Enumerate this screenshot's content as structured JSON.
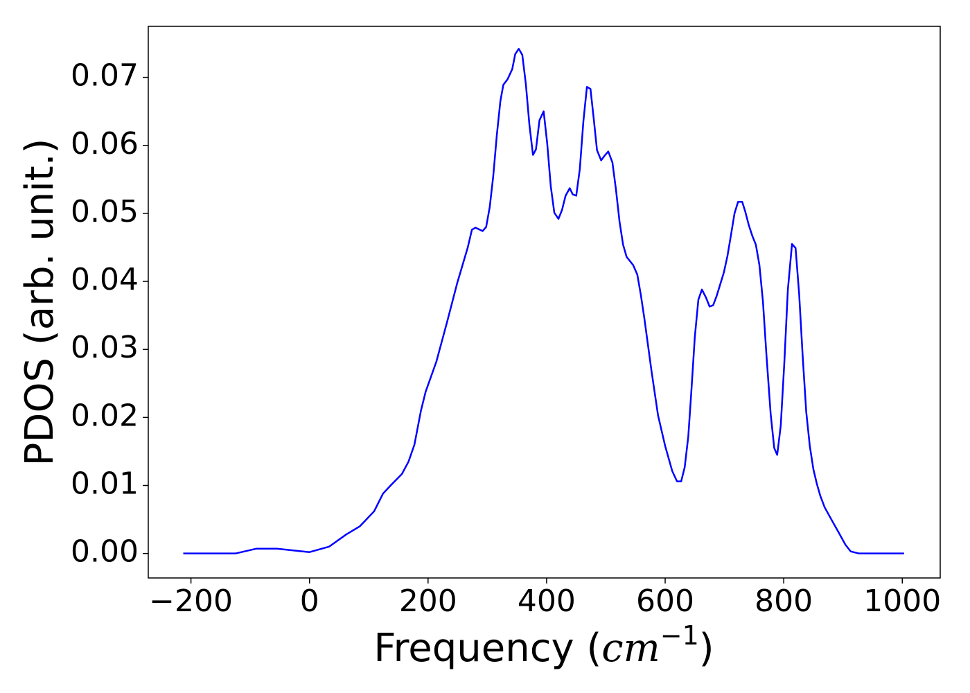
{
  "chart_data": {
    "type": "line",
    "xlabel": [
      "Frequency (",
      "cm",
      "−1",
      ")"
    ],
    "ylabel": "PDOS (arb. unit.)",
    "x": [
      -213,
      -125,
      -90,
      -55,
      0,
      33,
      62,
      85,
      109,
      124,
      138,
      156,
      167,
      177,
      188,
      196,
      214,
      232,
      249,
      267,
      274,
      280,
      292,
      298,
      304,
      310,
      316,
      322,
      327,
      334,
      342,
      347,
      353,
      359,
      365,
      371,
      377,
      382,
      388,
      395,
      401,
      407,
      413,
      420,
      426,
      432,
      439,
      444,
      450,
      456,
      462,
      468,
      474,
      480,
      485,
      492,
      498,
      504,
      511,
      517,
      523,
      529,
      535,
      546,
      553,
      559,
      565,
      577,
      588,
      600,
      612,
      620,
      627,
      633,
      639,
      644,
      650,
      656,
      662,
      669,
      675,
      681,
      687,
      699,
      705,
      711,
      717,
      723,
      730,
      735,
      741,
      747,
      753,
      759,
      765,
      771,
      778,
      784,
      789,
      795,
      801,
      807,
      814,
      820,
      826,
      832,
      838,
      844,
      850,
      856,
      862,
      869,
      881,
      892,
      904,
      913,
      927,
      1003
    ],
    "series": [
      {
        "name": "PDOS",
        "color": "#0000ff",
        "values": [
          0,
          0,
          0.0007,
          0.0007,
          0.0002,
          0.001,
          0.0028,
          0.004,
          0.0062,
          0.0088,
          0.0101,
          0.0117,
          0.0135,
          0.016,
          0.021,
          0.0238,
          0.0282,
          0.034,
          0.0397,
          0.045,
          0.0476,
          0.0479,
          0.0474,
          0.048,
          0.0509,
          0.0555,
          0.0615,
          0.0665,
          0.0689,
          0.0697,
          0.0712,
          0.0734,
          0.0742,
          0.0733,
          0.069,
          0.063,
          0.0586,
          0.0594,
          0.0637,
          0.065,
          0.0603,
          0.054,
          0.0501,
          0.0492,
          0.0505,
          0.0526,
          0.0537,
          0.0528,
          0.0526,
          0.0565,
          0.0635,
          0.0686,
          0.0683,
          0.0635,
          0.0593,
          0.0578,
          0.0585,
          0.0591,
          0.0575,
          0.0535,
          0.0488,
          0.0454,
          0.0436,
          0.0424,
          0.041,
          0.038,
          0.0345,
          0.0268,
          0.0203,
          0.0158,
          0.0121,
          0.0106,
          0.0106,
          0.0127,
          0.0172,
          0.0236,
          0.0318,
          0.0373,
          0.0388,
          0.0376,
          0.0363,
          0.0365,
          0.0379,
          0.0413,
          0.0437,
          0.0468,
          0.05,
          0.0517,
          0.0517,
          0.0503,
          0.0483,
          0.0467,
          0.0454,
          0.0424,
          0.037,
          0.029,
          0.0205,
          0.0155,
          0.0145,
          0.0188,
          0.028,
          0.0388,
          0.0455,
          0.0449,
          0.0382,
          0.029,
          0.0208,
          0.0158,
          0.0124,
          0.0102,
          0.0084,
          0.0068,
          0.0049,
          0.0032,
          0.0013,
          0.0003,
          0,
          0
        ]
      }
    ],
    "xlim": [
      -272,
      1064
    ],
    "ylim": [
      -0.0036,
      0.0775
    ],
    "xticks": [
      {
        "value": -200,
        "label": "−200"
      },
      0,
      200,
      400,
      600,
      800,
      1000
    ],
    "yticks": [
      {
        "value": 0,
        "label": "0.00"
      },
      0.01,
      0.02,
      0.03,
      0.04,
      0.05,
      0.06,
      0.07
    ],
    "grid": false
  }
}
